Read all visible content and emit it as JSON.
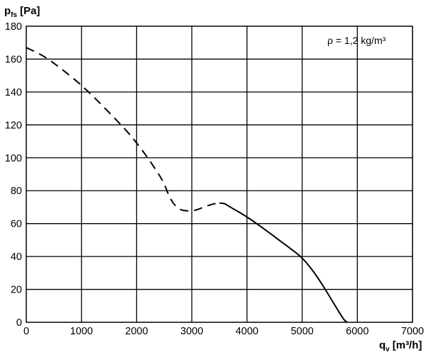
{
  "chart_data": {
    "type": "line",
    "ylabel": {
      "main": "p",
      "sub": "fs",
      "unit": "[Pa]"
    },
    "xlabel": {
      "main": "q",
      "sub": "v",
      "unit": "[m³/h]"
    },
    "xlim": [
      0,
      7000
    ],
    "ylim": [
      0,
      180
    ],
    "x_ticks": [
      0,
      1000,
      2000,
      3000,
      4000,
      5000,
      6000,
      7000
    ],
    "y_ticks": [
      0,
      20,
      40,
      60,
      80,
      100,
      120,
      140,
      160,
      180
    ],
    "grid": true,
    "annotation": "ρ = 1,2 kg/m³",
    "series": [
      {
        "style": "dashed",
        "x": [
          0,
          300,
          600,
          1000,
          1400,
          1800,
          2000,
          2200,
          2400,
          2500,
          2600,
          2700,
          2800,
          2900,
          3000,
          3100,
          3200,
          3300,
          3400,
          3500
        ],
        "y": [
          167,
          162,
          155,
          144,
          131,
          117,
          109,
          100,
          90,
          84,
          76,
          71,
          68.5,
          67.8,
          67.8,
          68.5,
          69.8,
          71,
          72,
          72.5
        ]
      },
      {
        "style": "solid",
        "x": [
          3500,
          3600,
          3700,
          4000,
          4300,
          4600,
          4800,
          5000,
          5200,
          5400,
          5600,
          5750,
          5820
        ],
        "y": [
          72.5,
          72,
          70,
          64,
          57,
          49.5,
          44.5,
          39,
          31,
          21,
          10,
          2,
          0
        ]
      }
    ]
  }
}
